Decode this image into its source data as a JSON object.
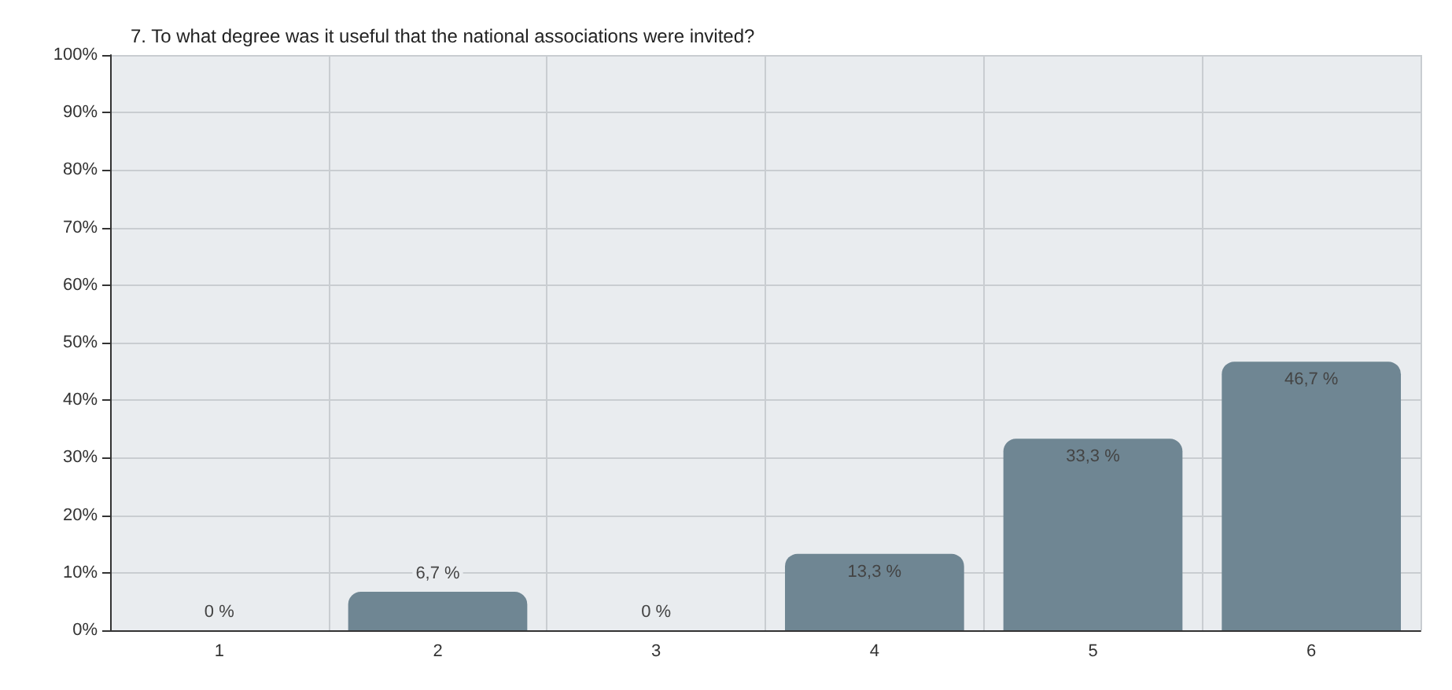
{
  "chart_data": {
    "type": "bar",
    "title": "7. To what degree was it useful that the national associations were invited?",
    "categories": [
      "1",
      "2",
      "3",
      "4",
      "5",
      "6"
    ],
    "values": [
      0,
      6.7,
      0,
      13.3,
      33.3,
      46.7
    ],
    "value_labels": [
      "0 %",
      "6,7 %",
      "0 %",
      "13,3 %",
      "33,3 %",
      "46,7 %"
    ],
    "color": "#6f8693",
    "ylim": [
      0,
      100
    ],
    "yticks": [
      {
        "value": 0,
        "label": "0%"
      },
      {
        "value": 10,
        "label": "10%"
      },
      {
        "value": 20,
        "label": "20%"
      },
      {
        "value": 30,
        "label": "30%"
      },
      {
        "value": 40,
        "label": "40%"
      },
      {
        "value": 50,
        "label": "50%"
      },
      {
        "value": 60,
        "label": "60%"
      },
      {
        "value": 70,
        "label": "70%"
      },
      {
        "value": 80,
        "label": "80%"
      },
      {
        "value": 90,
        "label": "90%"
      },
      {
        "value": 100,
        "label": "100%"
      }
    ],
    "grid": true
  }
}
